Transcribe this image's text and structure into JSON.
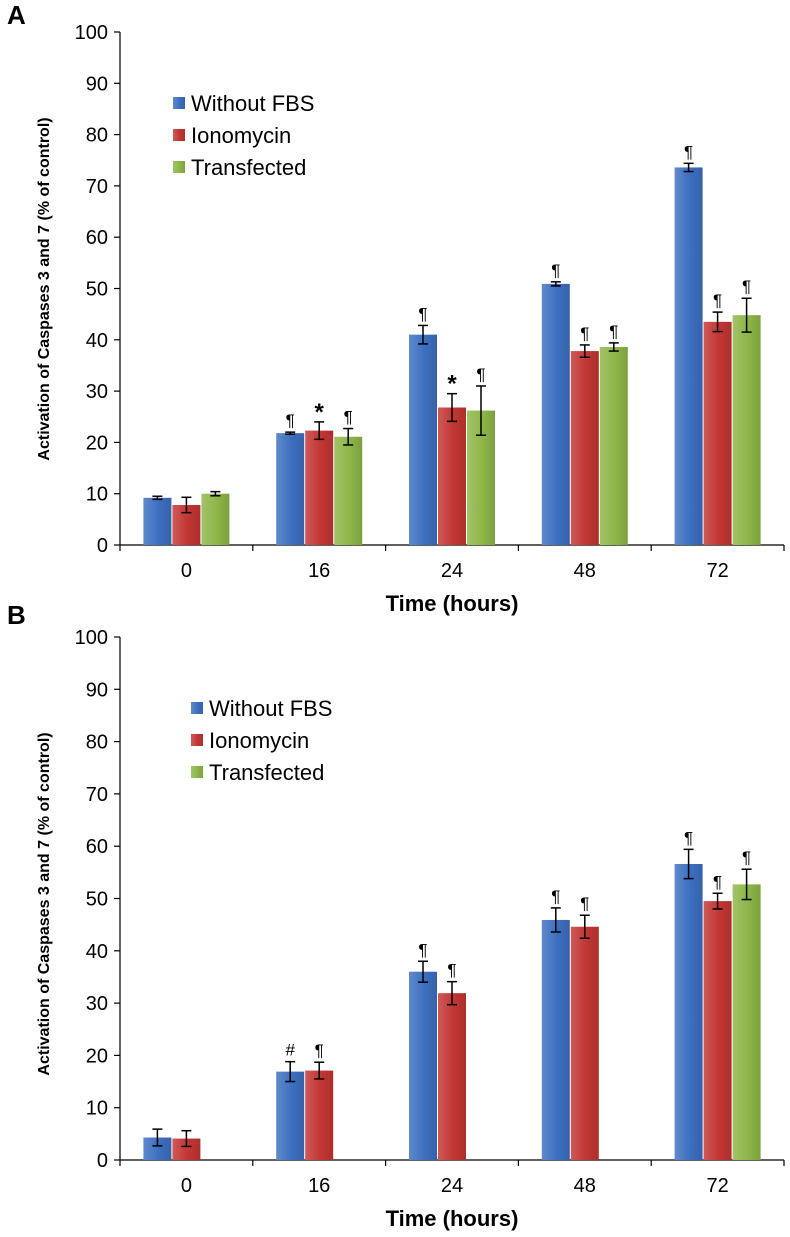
{
  "chart_data": [
    {
      "panel": "A",
      "type": "bar",
      "xlabel": "Time (hours)",
      "ylabel": "Activation of Caspases 3 and 7  (%  of control)",
      "ylim": [
        0,
        100
      ],
      "yticks": [
        0,
        10,
        20,
        30,
        40,
        50,
        60,
        70,
        80,
        90,
        100
      ],
      "grid": false,
      "legend_position": "top-left",
      "categories": [
        "0",
        "16",
        "24",
        "48",
        "72"
      ],
      "series": [
        {
          "name": "Without FBS",
          "color": "#3d6fc0",
          "values": [
            9.2,
            21.8,
            41.0,
            50.9,
            73.6
          ],
          "errors": [
            0.3,
            0.2,
            1.8,
            0.4,
            0.8
          ],
          "markers": [
            "",
            "¶",
            "¶",
            "¶",
            "¶"
          ]
        },
        {
          "name": "Ionomycin",
          "color": "#c23633",
          "values": [
            7.8,
            22.3,
            26.8,
            37.8,
            43.5
          ],
          "errors": [
            1.5,
            1.7,
            2.7,
            1.2,
            1.9
          ],
          "markers": [
            "",
            "*",
            "*",
            "¶",
            "¶"
          ]
        },
        {
          "name": "Transfected",
          "color": "#8db648",
          "values": [
            10.0,
            21.1,
            26.2,
            38.6,
            44.8
          ],
          "errors": [
            0.4,
            1.6,
            4.8,
            0.8,
            3.3
          ],
          "markers": [
            "",
            "¶",
            "¶",
            "¶",
            "¶"
          ]
        }
      ]
    },
    {
      "panel": "B",
      "type": "bar",
      "xlabel": "Time (hours)",
      "ylabel": "Activation of Caspases 3 and 7  (%  of control)",
      "ylim": [
        0,
        100
      ],
      "yticks": [
        0,
        10,
        20,
        30,
        40,
        50,
        60,
        70,
        80,
        90,
        100
      ],
      "grid": false,
      "legend_position": "top-left",
      "categories": [
        "0",
        "16",
        "24",
        "48",
        "72"
      ],
      "series": [
        {
          "name": "Without FBS",
          "color": "#3d6fc0",
          "values": [
            4.3,
            16.9,
            36.0,
            45.9,
            56.6
          ],
          "errors": [
            1.6,
            1.9,
            2.0,
            2.3,
            2.8
          ],
          "markers": [
            "",
            "#",
            "¶",
            "¶",
            "¶"
          ]
        },
        {
          "name": "Ionomycin",
          "color": "#c23633",
          "values": [
            4.1,
            17.1,
            31.9,
            44.6,
            49.5
          ],
          "errors": [
            1.5,
            1.6,
            2.2,
            2.2,
            1.5
          ],
          "markers": [
            "",
            "¶",
            "¶",
            "¶",
            "¶"
          ]
        },
        {
          "name": "Transfected",
          "color": "#8db648",
          "values": [
            null,
            null,
            null,
            null,
            52.7
          ],
          "errors": [
            null,
            null,
            null,
            null,
            2.9
          ],
          "markers": [
            "",
            "",
            "",
            "",
            "¶"
          ]
        }
      ]
    }
  ]
}
